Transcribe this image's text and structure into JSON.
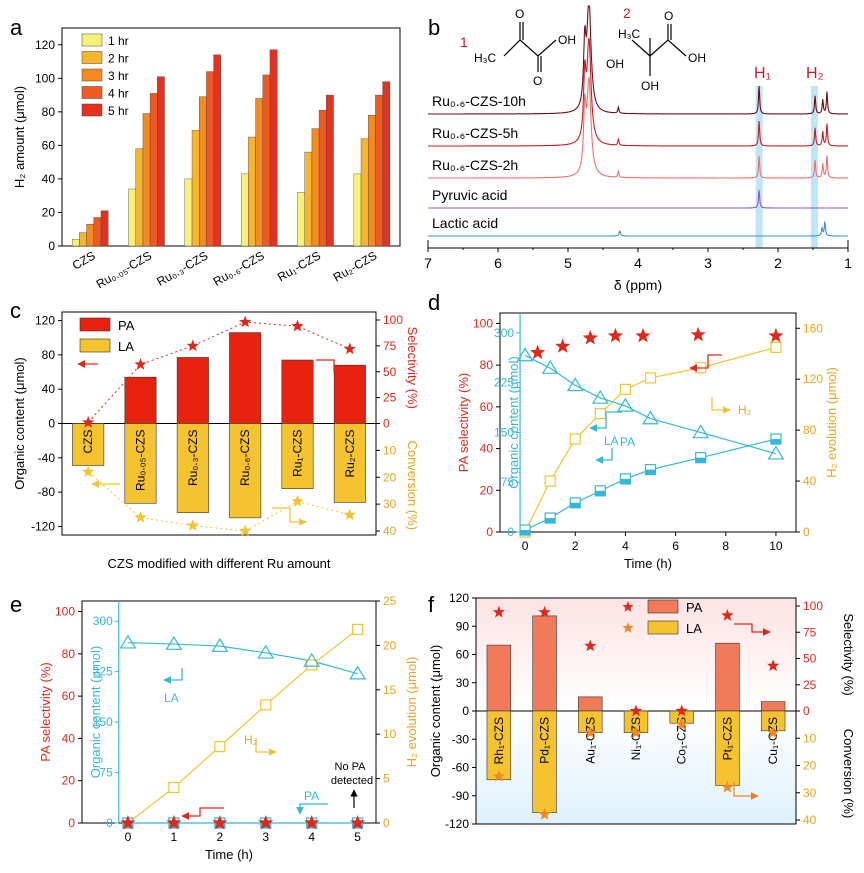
{
  "panels": {
    "a": "a",
    "b": "b",
    "c": "c",
    "d": "d",
    "e": "e",
    "f": "f"
  },
  "colors": {
    "red": "#e0281a",
    "yellow": "#f5c330",
    "cyan": "#35b8d8",
    "orange": "#e8811f",
    "bar1": "#f8f27a",
    "bar2": "#f6b52e",
    "bar3": "#f48a20",
    "bar4": "#ee5a22",
    "bar5": "#e4321e"
  },
  "chart_data": [
    {
      "id": "a",
      "type": "bar",
      "ylabel": "H₂ amount (μmol)",
      "ylim": [
        0,
        130
      ],
      "yticks": [
        "0",
        "20",
        "40",
        "60",
        "80",
        "100",
        "120"
      ],
      "categories": [
        "CZS",
        "Ru₀.₀₅-CZS",
        "Ru₀.₃-CZS",
        "Ru₀.₆-CZS",
        "Ru₁-CZS",
        "Ru₂-CZS"
      ],
      "series": [
        {
          "name": "1 hr",
          "values": [
            4,
            34,
            40,
            43,
            32,
            43
          ]
        },
        {
          "name": "2 hr",
          "values": [
            8,
            58,
            69,
            65,
            56,
            64
          ]
        },
        {
          "name": "3 hr",
          "values": [
            13,
            79,
            89,
            88,
            70,
            78
          ]
        },
        {
          "name": "4 hr",
          "values": [
            17,
            91,
            104,
            102,
            81,
            90
          ]
        },
        {
          "name": "5 hr",
          "values": [
            21,
            101,
            114,
            117,
            90,
            98
          ]
        }
      ]
    },
    {
      "id": "b",
      "type": "line",
      "xlabel": "δ (ppm)",
      "xticks": [
        "7",
        "6",
        "5",
        "4",
        "3",
        "2",
        "1"
      ],
      "spectra": [
        "Ru₀.₆-CZS-10h",
        "Ru₀.₆-CZS-5h",
        "Ru₀.₆-CZS-2h",
        "Pyruvic acid",
        "Lactic acid"
      ],
      "peak_labels": [
        "H₁",
        "H₂"
      ],
      "compound_numbers": [
        "1",
        "2"
      ],
      "atom_labels": [
        "O",
        "OH",
        "H₃C",
        "O",
        "OH",
        "H₃C",
        "OH",
        "OH",
        "O"
      ]
    },
    {
      "id": "c",
      "type": "bar",
      "ylabel": "Organic content (μmol)",
      "ylim": [
        -130,
        130
      ],
      "yticks": [
        "-120",
        "-80",
        "-40",
        "0",
        "40",
        "80",
        "120"
      ],
      "xlabel": "CZS modified with different Ru amount",
      "right_label_top": "Selectivity (%)",
      "right_label_bottom": "Conversion (%)",
      "right_ticks_top": [
        "0",
        "25",
        "50",
        "75",
        "100"
      ],
      "right_ticks_bottom": [
        "10",
        "20",
        "30",
        "40"
      ],
      "categories": [
        "CZS",
        "Ru₀.₀₅-CZS",
        "Ru₀.₃-CZS",
        "Ru₀.₆-CZS",
        "Ru₁-CZS",
        "Ru₂-CZS"
      ],
      "series": [
        {
          "name": "PA",
          "values": [
            0,
            54,
            77,
            106,
            74,
            68
          ]
        },
        {
          "name": "LA",
          "values": [
            -49,
            -93,
            -104,
            -110,
            -76,
            -92
          ]
        }
      ],
      "selectivity": [
        1,
        57,
        75,
        98,
        94,
        72
      ],
      "conversion": [
        18,
        35,
        38,
        40,
        29,
        34
      ]
    },
    {
      "id": "d",
      "type": "scatter",
      "xlabel": "Time (h)",
      "xticks": [
        "0",
        "2",
        "4",
        "6",
        "8",
        "10"
      ],
      "xlim": [
        -1,
        10.8
      ],
      "ylabel_left": "PA selectivity (%)",
      "yticks_left": [
        "0",
        "20",
        "40",
        "60",
        "80",
        "100"
      ],
      "ylabel_left2": "Organic content (μmol)",
      "yticks_left2": [
        "0",
        "75",
        "150",
        "225",
        "300"
      ],
      "ylabel_right": "H₂ evolution (μmol)",
      "yticks_right": [
        "0",
        "40",
        "80",
        "120",
        "160"
      ],
      "series": [
        {
          "name": "PA selectivity",
          "x": [
            0.5,
            1.5,
            2.6,
            3.6,
            4.7,
            6.9,
            10
          ],
          "values": [
            86,
            89,
            93,
            94,
            94,
            94.5,
            94
          ]
        },
        {
          "name": "LA",
          "x": [
            0,
            1,
            2,
            3,
            4,
            5,
            7,
            10
          ],
          "values": [
            266,
            247,
            221,
            202,
            190,
            171,
            150,
            118
          ]
        },
        {
          "name": "PA",
          "x": [
            0,
            1,
            2,
            3,
            4,
            5,
            7,
            10
          ],
          "values": [
            3,
            21,
            44,
            62,
            80,
            94,
            112,
            140
          ]
        },
        {
          "name": "H₂",
          "x": [
            0,
            1,
            2,
            3,
            4,
            5,
            7,
            10
          ],
          "values": [
            0,
            40,
            73,
            93,
            112,
            121,
            129,
            145
          ]
        }
      ],
      "labels": [
        "LA",
        "PA",
        "H₂"
      ]
    },
    {
      "id": "e",
      "type": "scatter",
      "xlabel": "Time (h)",
      "xticks": [
        "0",
        "1",
        "2",
        "3",
        "4",
        "5"
      ],
      "xlim": [
        -1,
        5.4
      ],
      "ylabel_left": "PA selectivity (%)",
      "yticks_left": [
        "0",
        "20",
        "40",
        "60",
        "80",
        "100"
      ],
      "ylabel_left2": "Organic content (μmol)",
      "yticks_left2": [
        "0",
        "75",
        "150",
        "225",
        "300"
      ],
      "ylabel_right": "H₂ evolution (μmol)",
      "yticks_right": [
        "0",
        "5",
        "10",
        "15",
        "20",
        "25"
      ],
      "series": [
        {
          "name": "PA selectivity",
          "x": [
            0,
            1,
            2,
            3,
            4,
            5
          ],
          "values": [
            0,
            0,
            0,
            0,
            0,
            0
          ]
        },
        {
          "name": "LA",
          "x": [
            0,
            1,
            2,
            3,
            4,
            5
          ],
          "values": [
            268,
            266,
            263,
            253,
            241,
            222
          ]
        },
        {
          "name": "PA",
          "x": [
            0,
            1,
            2,
            3,
            4,
            5
          ],
          "values": [
            0,
            0,
            0,
            0,
            0,
            0
          ]
        },
        {
          "name": "H₂",
          "x": [
            0,
            1,
            2,
            3,
            4,
            5
          ],
          "values": [
            0,
            4,
            8.6,
            13.3,
            17.8,
            21.8
          ]
        }
      ],
      "labels": [
        "LA",
        "H₂",
        "PA"
      ],
      "annotation": [
        "No PA",
        "detected"
      ]
    },
    {
      "id": "f",
      "type": "bar",
      "ylabel": "Organic content (μmol)",
      "ylim": [
        -120,
        120
      ],
      "yticks": [
        "-120",
        "-90",
        "-60",
        "-30",
        "0",
        "30",
        "60",
        "90",
        "120"
      ],
      "right_label_top": "Selectivity (%)",
      "right_label_bottom": "Conversion (%)",
      "right_ticks_top": [
        "0",
        "25",
        "50",
        "75",
        "100"
      ],
      "right_ticks_bottom": [
        "10",
        "20",
        "30",
        "40"
      ],
      "categories": [
        "Rh₁-CZS",
        "Pd₁-CZS",
        "Au₁-CZS",
        "Ni₁-CZS",
        "Co₁-CZS",
        "Pt₁-CZS",
        "Cu₁-CZS"
      ],
      "series": [
        {
          "name": "PA",
          "values": [
            70,
            101,
            15,
            0,
            0,
            72,
            10
          ]
        },
        {
          "name": "LA",
          "values": [
            -73,
            -108,
            -23,
            -23,
            -13,
            -79,
            -21
          ]
        }
      ],
      "selectivity": [
        94,
        94,
        62,
        0,
        0,
        91,
        43
      ],
      "conversion": [
        24,
        38,
        8,
        8,
        5,
        28,
        8
      ]
    }
  ]
}
